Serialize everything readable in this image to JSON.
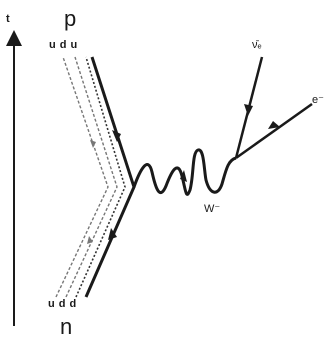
{
  "diagram": {
    "time_axis": {
      "label": "t"
    },
    "proton": {
      "label": "p",
      "quarks": "u d u"
    },
    "neutron": {
      "label": "n",
      "quarks": "u d d"
    },
    "boson": {
      "label": "W⁻"
    },
    "antineutrino": {
      "label": "ν̄ₑ"
    },
    "electron": {
      "label": "e⁻"
    },
    "colors": {
      "ink": "#1a1a1a",
      "dashed": "#777777"
    }
  }
}
